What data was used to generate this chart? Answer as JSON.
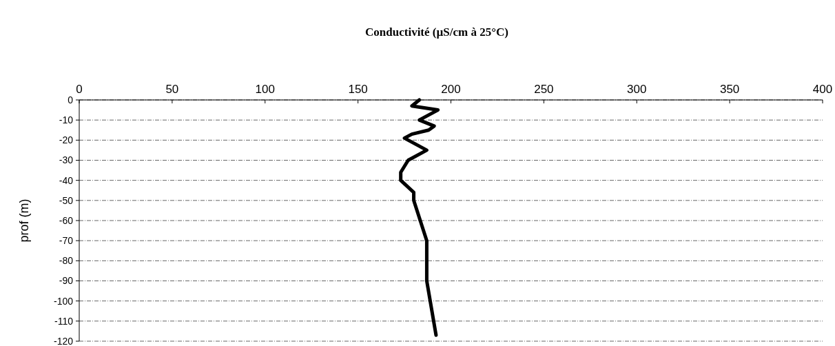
{
  "chart_data": {
    "type": "line",
    "title": "Conductivité (µS/cm à 25°C)",
    "ylabel": "prof (m)",
    "xlim": [
      0,
      400
    ],
    "xticks": [
      0,
      50,
      100,
      150,
      200,
      250,
      300,
      350,
      400
    ],
    "ylim": [
      -120,
      0
    ],
    "yticks": [
      0,
      -10,
      -20,
      -30,
      -40,
      -50,
      -60,
      -70,
      -80,
      -90,
      -100,
      -110,
      -120
    ],
    "grid": "y",
    "line_style": "solid",
    "series": [
      {
        "color": "#000000",
        "x": [
          183,
          179,
          193,
          183,
          191,
          188,
          179,
          175,
          187,
          177,
          173,
          173,
          180,
          180,
          187,
          187,
          192
        ],
        "values": [
          0,
          -3,
          -5,
          -10,
          -13,
          -15,
          -17,
          -19,
          -25,
          -30,
          -36,
          -40,
          -46,
          -50,
          -70,
          -90,
          -117
        ]
      }
    ]
  }
}
